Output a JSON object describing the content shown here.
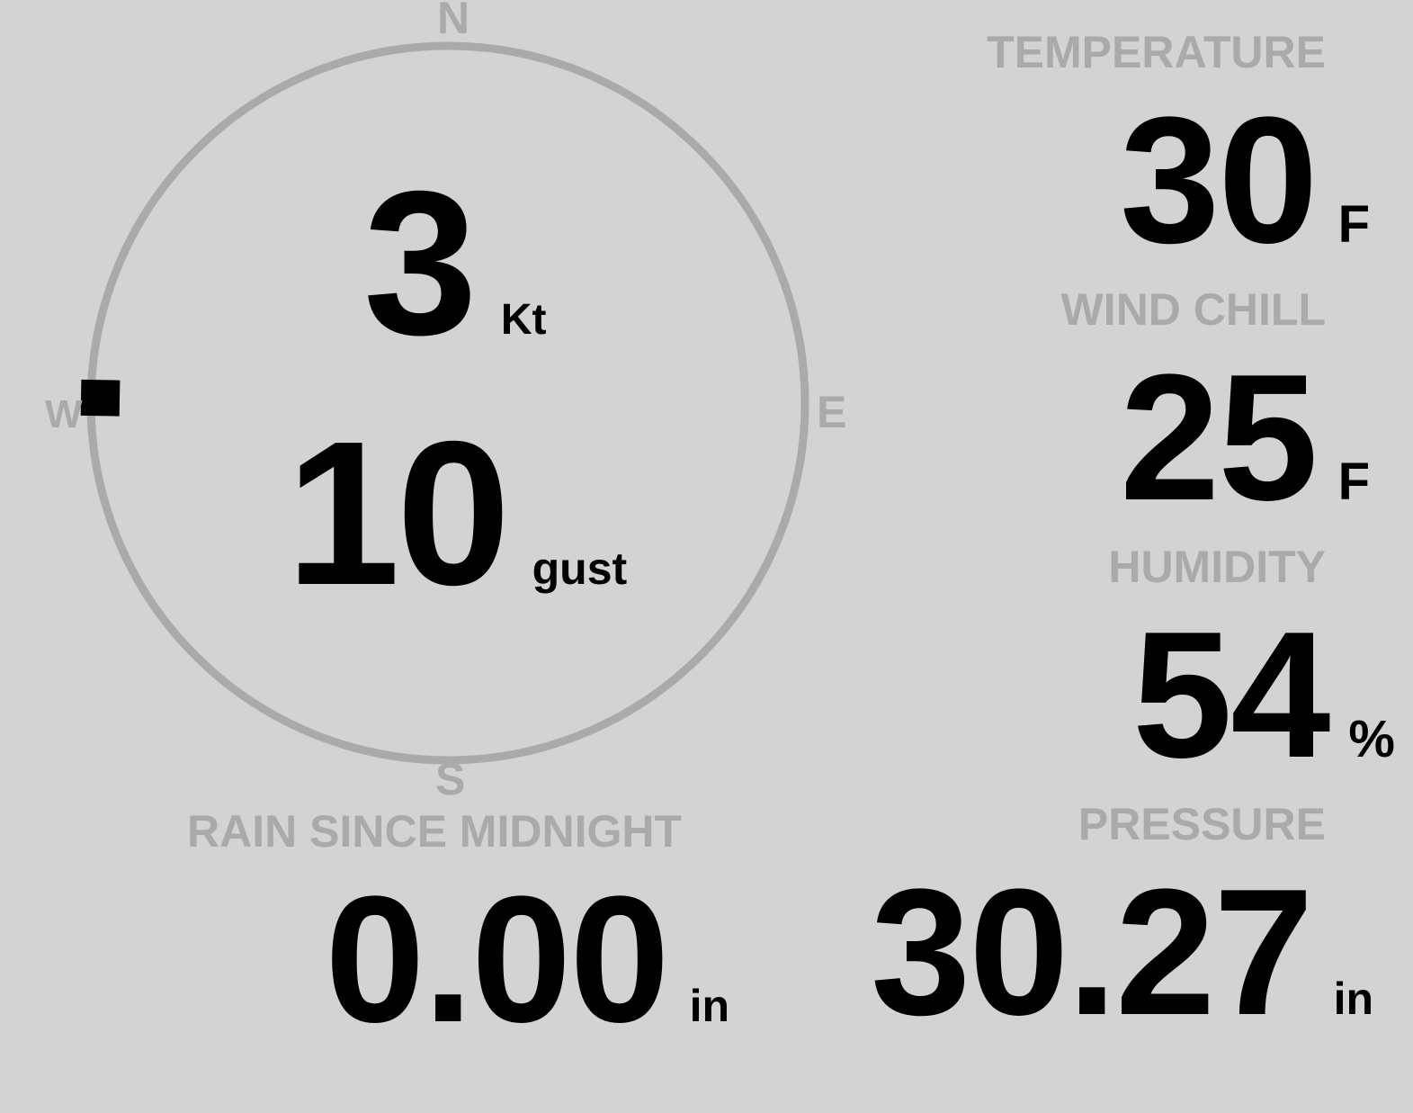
{
  "colors": {
    "background": "#d3d3d3",
    "label": "#aaaaaa",
    "value": "#000000",
    "compass_ring": "#aaaaaa",
    "wind_pointer": "#000000"
  },
  "wind": {
    "speed": "3",
    "speed_unit": "Kt",
    "gust": "10",
    "gust_label": "gust",
    "direction_deg": 271,
    "compass": {
      "n": "N",
      "e": "E",
      "s": "S",
      "w": "W"
    }
  },
  "temperature": {
    "label": "TEMPERATURE",
    "value": "30",
    "unit": "F"
  },
  "wind_chill": {
    "label": "WIND CHILL",
    "value": "25",
    "unit": "F"
  },
  "humidity": {
    "label": "HUMIDITY",
    "value": "54",
    "unit": "%"
  },
  "pressure": {
    "label": "PRESSURE",
    "value": "30.27",
    "unit": "in"
  },
  "rain": {
    "label": "RAIN SINCE MIDNIGHT",
    "value": "0.00",
    "unit": "in"
  }
}
